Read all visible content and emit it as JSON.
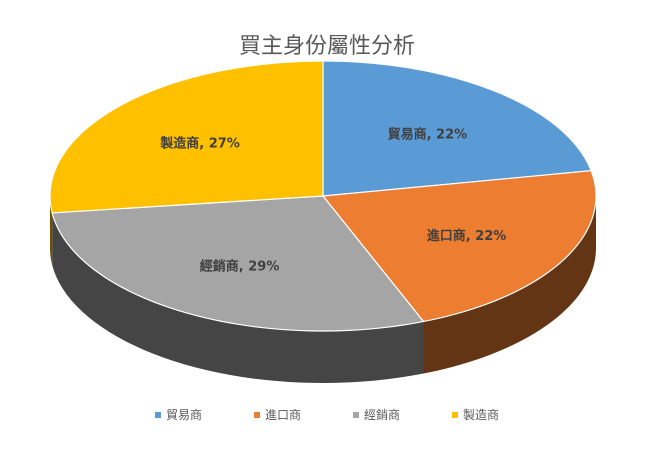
{
  "chart_data": {
    "type": "pie",
    "title": "買主身份屬性分析",
    "categories": [
      "貿易商",
      "進口商",
      "經銷商",
      "製造商"
    ],
    "values": [
      22,
      22,
      29,
      27
    ],
    "unit": "%",
    "data_labels": [
      "貿易商, 22%",
      "進口商, 22%",
      "經銷商, 29%",
      "製造商, 27%"
    ],
    "colors": [
      "#5B9BD5",
      "#ED7D31",
      "#A5A5A5",
      "#FFC000"
    ],
    "legend_position": "bottom",
    "style": "3d"
  }
}
